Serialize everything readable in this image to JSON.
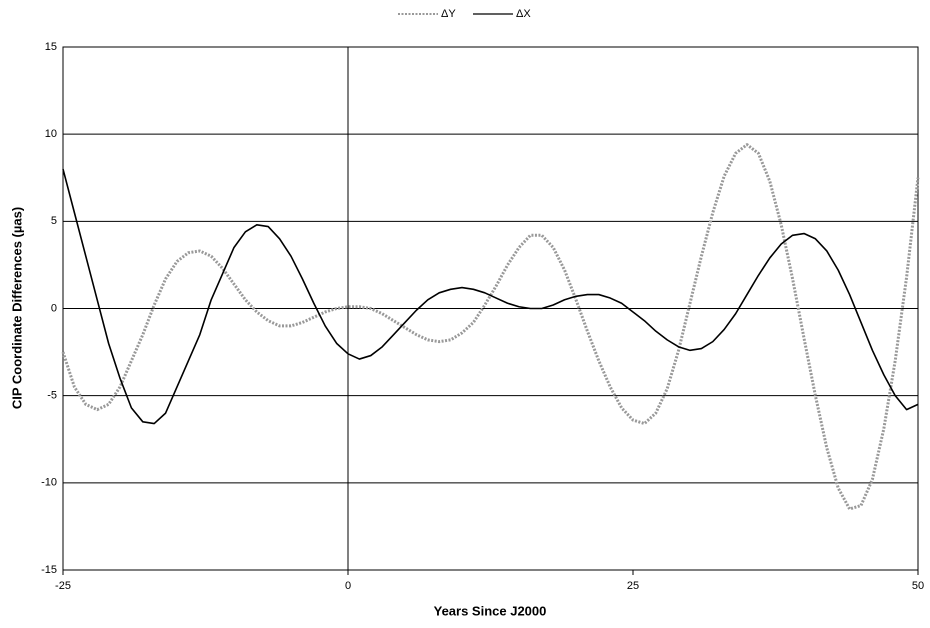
{
  "chart_data": {
    "type": "line",
    "x_label": "Years Since J2000",
    "y_label": "CIP Coordinate Differences (µas)",
    "x": [
      -25,
      -24,
      -23,
      -22,
      -21,
      -20,
      -19,
      -18,
      -17,
      -16,
      -15,
      -14,
      -13,
      -12,
      -11,
      -10,
      -9,
      -8,
      -7,
      -6,
      -5,
      -4,
      -3,
      -2,
      -1,
      0,
      1,
      2,
      3,
      4,
      5,
      6,
      7,
      8,
      9,
      10,
      11,
      12,
      13,
      14,
      15,
      16,
      17,
      18,
      19,
      20,
      21,
      22,
      23,
      24,
      25,
      26,
      27,
      28,
      29,
      30,
      31,
      32,
      33,
      34,
      35,
      36,
      37,
      38,
      39,
      40,
      41,
      42,
      43,
      44,
      45,
      46,
      47,
      48,
      49,
      50
    ],
    "series": [
      {
        "name": "ΔY",
        "color": "#999999",
        "dashed": true,
        "values": [
          -2.5,
          -4.5,
          -5.5,
          -5.8,
          -5.5,
          -4.5,
          -3,
          -1.5,
          0.2,
          1.7,
          2.7,
          3.2,
          3.3,
          3.0,
          2.3,
          1.4,
          0.5,
          -0.2,
          -0.7,
          -1.0,
          -1.0,
          -0.8,
          -0.5,
          -0.2,
          0,
          0.1,
          0.1,
          0,
          -0.3,
          -0.7,
          -1.1,
          -1.5,
          -1.8,
          -1.9,
          -1.8,
          -1.4,
          -0.8,
          0.2,
          1.3,
          2.5,
          3.5,
          4.2,
          4.2,
          3.5,
          2.2,
          0.5,
          -1.3,
          -3.0,
          -4.5,
          -5.7,
          -6.4,
          -6.6,
          -6.0,
          -4.6,
          -2.4,
          0.3,
          3.0,
          5.5,
          7.6,
          8.9,
          9.4,
          8.9,
          7.3,
          4.8,
          1.7,
          -1.7,
          -5.0,
          -8.0,
          -10.3,
          -11.5,
          -11.3,
          -9.8,
          -6.9,
          -3,
          1.8,
          7.5
        ]
      },
      {
        "name": "ΔX",
        "color": "#000000",
        "dashed": false,
        "values": [
          8,
          5.5,
          3,
          0.5,
          -2,
          -4,
          -5.7,
          -6.5,
          -6.6,
          -6,
          -4.5,
          -3,
          -1.5,
          0.5,
          2,
          3.5,
          4.4,
          4.8,
          4.7,
          4.0,
          3,
          1.7,
          0.3,
          -1,
          -2,
          -2.6,
          -2.9,
          -2.7,
          -2.2,
          -1.5,
          -0.8,
          -0.1,
          0.5,
          0.9,
          1.1,
          1.2,
          1.1,
          0.9,
          0.6,
          0.3,
          0.1,
          0,
          0,
          0.2,
          0.5,
          0.7,
          0.8,
          0.8,
          0.6,
          0.3,
          -0.2,
          -0.7,
          -1.3,
          -1.8,
          -2.2,
          -2.4,
          -2.3,
          -1.9,
          -1.2,
          -0.3,
          0.8,
          1.9,
          2.9,
          3.7,
          4.2,
          4.3,
          4.0,
          3.3,
          2.2,
          0.8,
          -0.8,
          -2.4,
          -3.8,
          -5.0,
          -5.8,
          -5.5
        ]
      }
    ],
    "xlim": [
      -25,
      50
    ],
    "xticks": [
      -25,
      0,
      25,
      50
    ],
    "ylim": [
      -15,
      15
    ],
    "yticks": [
      -15,
      -10,
      -5,
      0,
      5,
      10,
      15
    ],
    "grid": true,
    "legend": "top"
  }
}
